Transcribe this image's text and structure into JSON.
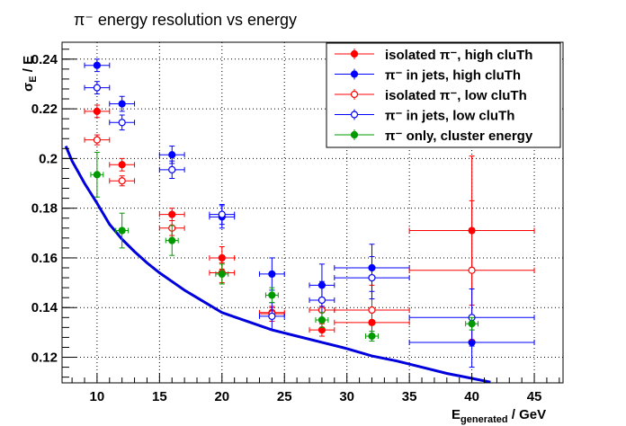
{
  "chart_data": {
    "type": "scatter",
    "title": "π⁻ energy resolution vs energy",
    "xlabel": "E_generated / GeV",
    "xlabel_main": "E",
    "xlabel_sub": "generated",
    "xlabel_unit": " / GeV",
    "ylabel": "σ_E / E",
    "ylabel_main": "σ",
    "ylabel_sub": "E",
    "ylabel_rest": " / E",
    "xlim": [
      7.2,
      47.3
    ],
    "ylim": [
      0.1097,
      0.2468
    ],
    "grid": true,
    "legend_position": "top-right",
    "x_ticks": [
      "10",
      "15",
      "20",
      "25",
      "30",
      "35",
      "40",
      "45"
    ],
    "y_ticks": [
      "0.12",
      "0.14",
      "0.16",
      "0.18",
      "0.2",
      "0.22",
      "0.24"
    ],
    "series": [
      {
        "name": "isolated π⁻, high cluTh",
        "color": "#ff0000",
        "marker": "filled-circle",
        "points": [
          {
            "x": 10,
            "y": 0.219,
            "xerr": 1,
            "yerr": 0.0025
          },
          {
            "x": 12,
            "y": 0.1975,
            "xerr": 1,
            "yerr": 0.0025
          },
          {
            "x": 16,
            "y": 0.1775,
            "xerr": 1,
            "yerr": 0.0025
          },
          {
            "x": 20,
            "y": 0.16,
            "xerr": 1,
            "yerr": 0.0045
          },
          {
            "x": 24,
            "y": 0.138,
            "xerr": 1,
            "yerr": 0.002
          },
          {
            "x": 28,
            "y": 0.131,
            "xerr": 1,
            "yerr": 0.0025
          },
          {
            "x": 32,
            "y": 0.134,
            "xerr": 3,
            "yerr": 0.005
          },
          {
            "x": 40,
            "y": 0.171,
            "xerr": 5,
            "yerr": 0.03
          }
        ]
      },
      {
        "name": "π⁻ in jets, high cluTh",
        "color": "#0000ff",
        "marker": "filled-circle",
        "points": [
          {
            "x": 10,
            "y": 0.2375,
            "xerr": 1,
            "yerr": 0.0025
          },
          {
            "x": 12,
            "y": 0.222,
            "xerr": 1,
            "yerr": 0.003
          },
          {
            "x": 16,
            "y": 0.2015,
            "xerr": 1,
            "yerr": 0.0035
          },
          {
            "x": 20,
            "y": 0.1765,
            "xerr": 1,
            "yerr": 0.0045
          },
          {
            "x": 24,
            "y": 0.1535,
            "xerr": 1,
            "yerr": 0.0065
          },
          {
            "x": 28,
            "y": 0.149,
            "xerr": 1,
            "yerr": 0.0085
          },
          {
            "x": 32,
            "y": 0.156,
            "xerr": 3,
            "yerr": 0.0095
          },
          {
            "x": 40,
            "y": 0.126,
            "xerr": 5,
            "yerr": 0.01
          }
        ]
      },
      {
        "name": "isolated π⁻, low cluTh",
        "color": "#ff0000",
        "marker": "open-circle",
        "points": [
          {
            "x": 10,
            "y": 0.2075,
            "xerr": 1,
            "yerr": 0.002
          },
          {
            "x": 12,
            "y": 0.191,
            "xerr": 1,
            "yerr": 0.002
          },
          {
            "x": 16,
            "y": 0.172,
            "xerr": 1,
            "yerr": 0.003
          },
          {
            "x": 20,
            "y": 0.154,
            "xerr": 1,
            "yerr": 0.004
          },
          {
            "x": 24,
            "y": 0.1375,
            "xerr": 1,
            "yerr": 0.003
          },
          {
            "x": 28,
            "y": 0.139,
            "xerr": 1,
            "yerr": 0.005
          },
          {
            "x": 32,
            "y": 0.139,
            "xerr": 3,
            "yerr": 0.01
          },
          {
            "x": 40,
            "y": 0.155,
            "xerr": 5,
            "yerr": 0.028
          }
        ]
      },
      {
        "name": "π⁻ in jets, low cluTh",
        "color": "#0000ff",
        "marker": "open-circle",
        "points": [
          {
            "x": 10,
            "y": 0.2285,
            "xerr": 1,
            "yerr": 0.0025
          },
          {
            "x": 12,
            "y": 0.2145,
            "xerr": 1,
            "yerr": 0.003
          },
          {
            "x": 16,
            "y": 0.1955,
            "xerr": 1,
            "yerr": 0.0035
          },
          {
            "x": 20,
            "y": 0.1775,
            "xerr": 1,
            "yerr": 0.004
          },
          {
            "x": 24,
            "y": 0.1365,
            "xerr": 1,
            "yerr": 0.0055
          },
          {
            "x": 28,
            "y": 0.143,
            "xerr": 1,
            "yerr": 0.0075
          },
          {
            "x": 32,
            "y": 0.152,
            "xerr": 3,
            "yerr": 0.0085
          },
          {
            "x": 40,
            "y": 0.136,
            "xerr": 5,
            "yerr": 0.0115
          }
        ]
      },
      {
        "name": "π⁻ only, cluster energy",
        "color": "#009900",
        "marker": "filled-circle",
        "points": [
          {
            "x": 10,
            "y": 0.1935,
            "xerr": 0.5,
            "yerr": 0.009
          },
          {
            "x": 12,
            "y": 0.171,
            "xerr": 0.5,
            "yerr": 0.007
          },
          {
            "x": 16,
            "y": 0.167,
            "xerr": 0.5,
            "yerr": 0.006
          },
          {
            "x": 20,
            "y": 0.1535,
            "xerr": 0.5,
            "yerr": 0.004
          },
          {
            "x": 24,
            "y": 0.145,
            "xerr": 0.5,
            "yerr": 0.003
          },
          {
            "x": 28,
            "y": 0.135,
            "xerr": 0.5,
            "yerr": 0.003
          },
          {
            "x": 32,
            "y": 0.1285,
            "xerr": 0.5,
            "yerr": 0.002
          },
          {
            "x": 40,
            "y": 0.1335,
            "xerr": 0.5,
            "yerr": 0.0025
          }
        ]
      }
    ],
    "curve": {
      "color": "#0000dd",
      "x": [
        7.5,
        8,
        9,
        10,
        11,
        12,
        13,
        14,
        15,
        16,
        17,
        18,
        20,
        22,
        24,
        26,
        28,
        30,
        32,
        34,
        36,
        38,
        40,
        41.5
      ],
      "y": [
        0.205,
        0.199,
        0.19,
        0.182,
        0.1735,
        0.1675,
        0.1625,
        0.158,
        0.154,
        0.1505,
        0.147,
        0.144,
        0.138,
        0.1345,
        0.131,
        0.1285,
        0.126,
        0.1235,
        0.1205,
        0.1185,
        0.116,
        0.1135,
        0.1115,
        0.11
      ]
    }
  }
}
